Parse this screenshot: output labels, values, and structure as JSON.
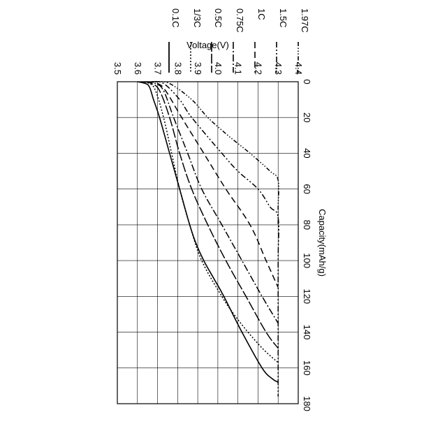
{
  "chart_data": {
    "type": "line",
    "xlabel": "Capacity(mAh/g)",
    "ylabel": "Voltage(V)",
    "xlim": [
      0,
      180
    ],
    "ylim": [
      3.5,
      4.4
    ],
    "x_ticks": [
      "0",
      "20",
      "40",
      "60",
      "80",
      "100",
      "120",
      "140",
      "160",
      "180"
    ],
    "y_ticks": [
      "3.5",
      "3.6",
      "3.7",
      "3.8",
      "3.9",
      "4.0",
      "4.1",
      "4.2",
      "4.3",
      "4.4"
    ],
    "grid": true,
    "legend_position": "top-right",
    "orientation": "rotated-90-clockwise",
    "series": [
      {
        "name": "0.1C",
        "dash": "solid",
        "points": [
          [
            0,
            3.6
          ],
          [
            1,
            3.64
          ],
          [
            3,
            3.66
          ],
          [
            10,
            3.68
          ],
          [
            20,
            3.71
          ],
          [
            40,
            3.76
          ],
          [
            60,
            3.81
          ],
          [
            80,
            3.86
          ],
          [
            90,
            3.89
          ],
          [
            100,
            3.93
          ],
          [
            110,
            3.98
          ],
          [
            120,
            4.03
          ],
          [
            140,
            4.12
          ],
          [
            160,
            4.22
          ],
          [
            166,
            4.27
          ],
          [
            168,
            4.3
          ]
        ]
      },
      {
        "name": "1/3C",
        "dash": "dotted",
        "points": [
          [
            0,
            3.62
          ],
          [
            1,
            3.66
          ],
          [
            5,
            3.69
          ],
          [
            20,
            3.73
          ],
          [
            40,
            3.77
          ],
          [
            60,
            3.81
          ],
          [
            80,
            3.86
          ],
          [
            100,
            3.92
          ],
          [
            120,
            4.02
          ],
          [
            130,
            4.08
          ],
          [
            140,
            4.15
          ],
          [
            150,
            4.23
          ],
          [
            157,
            4.3
          ]
        ]
      },
      {
        "name": "0.5C",
        "dash": "dash-long",
        "points": [
          [
            0,
            3.63
          ],
          [
            1,
            3.67
          ],
          [
            5,
            3.71
          ],
          [
            20,
            3.76
          ],
          [
            40,
            3.81
          ],
          [
            60,
            3.87
          ],
          [
            80,
            3.95
          ],
          [
            100,
            4.04
          ],
          [
            120,
            4.14
          ],
          [
            140,
            4.24
          ],
          [
            149,
            4.3
          ]
        ]
      },
      {
        "name": "0.75C",
        "dash": "dash-dot",
        "points": [
          [
            0,
            3.64
          ],
          [
            1,
            3.69
          ],
          [
            5,
            3.73
          ],
          [
            20,
            3.78
          ],
          [
            40,
            3.85
          ],
          [
            60,
            3.92
          ],
          [
            80,
            4.02
          ],
          [
            100,
            4.12
          ],
          [
            120,
            4.22
          ],
          [
            135,
            4.3
          ]
        ]
      },
      {
        "name": "1C",
        "dash": "dashed",
        "points": [
          [
            0,
            3.65
          ],
          [
            1,
            3.7
          ],
          [
            5,
            3.74
          ],
          [
            20,
            3.82
          ],
          [
            40,
            3.93
          ],
          [
            60,
            4.04
          ],
          [
            80,
            4.16
          ],
          [
            100,
            4.24
          ],
          [
            115,
            4.3
          ]
        ]
      },
      {
        "name": "1.5C",
        "dash": "dash-dot-dot",
        "points": [
          [
            0,
            3.67
          ],
          [
            1,
            3.73
          ],
          [
            10,
            3.81
          ],
          [
            20,
            3.87
          ],
          [
            40,
            4.02
          ],
          [
            50,
            4.1
          ],
          [
            60,
            4.2
          ],
          [
            70,
            4.26
          ],
          [
            76,
            4.3
          ],
          [
            100,
            4.3
          ],
          [
            140,
            4.3
          ],
          [
            170,
            4.3
          ],
          [
            176,
            4.3
          ]
        ]
      },
      {
        "name": "1.97C",
        "dash": "dash-dot-dot-dot",
        "points": [
          [
            0,
            3.69
          ],
          [
            1,
            3.76
          ],
          [
            10,
            3.87
          ],
          [
            20,
            3.95
          ],
          [
            30,
            4.05
          ],
          [
            40,
            4.16
          ],
          [
            50,
            4.26
          ],
          [
            55,
            4.3
          ],
          [
            70,
            4.3
          ],
          [
            80,
            4.3
          ]
        ]
      }
    ]
  }
}
